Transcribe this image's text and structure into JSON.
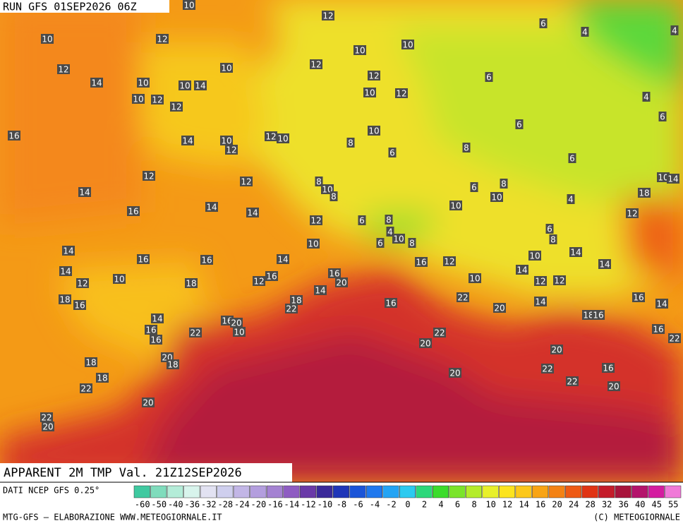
{
  "header": {
    "run": "RUN GFS 01SEP2026 06Z"
  },
  "map": {
    "title": "APPARENT 2M TMP Val. 21Z12SEP2026",
    "labels": [
      10,
      12,
      10,
      12,
      12,
      10,
      12,
      10,
      10,
      14,
      10,
      10,
      14,
      10,
      12,
      12,
      12,
      10,
      12,
      16,
      14,
      10,
      12,
      12,
      10,
      10,
      8,
      6,
      8,
      12,
      12,
      14,
      8,
      10,
      8,
      6,
      8,
      10,
      16,
      14,
      14,
      12,
      6,
      8,
      10,
      4,
      10,
      8,
      6,
      10,
      14,
      16,
      16,
      14,
      14,
      10,
      18,
      12,
      16,
      16,
      20,
      14,
      12,
      18,
      16,
      18,
      22,
      16,
      16,
      12,
      10,
      22,
      20,
      10,
      14,
      14,
      14,
      12,
      12,
      14,
      6,
      8,
      4,
      6,
      18,
      12,
      10,
      14,
      6,
      4,
      4,
      4,
      6,
      6,
      6,
      12,
      14,
      16,
      22,
      16,
      16,
      20,
      10,
      18,
      16,
      16,
      14,
      16,
      22,
      22,
      20,
      20,
      16,
      22,
      22,
      20,
      20,
      18,
      20,
      18,
      18,
      22,
      20,
      22,
      20
    ]
  },
  "footer": {
    "source": "DATI NCEP GFS 0.25°",
    "credit": "MTG-GFS — ELABORAZIONE WWW.METEOGIORNALE.IT",
    "copyright": "(C) METEOGIORNALE"
  },
  "colorbar": {
    "ticks": [
      -60,
      -50,
      -40,
      -36,
      -32,
      -28,
      -24,
      -20,
      -16,
      -14,
      -12,
      -10,
      -8,
      -6,
      -4,
      -2,
      0,
      2,
      4,
      6,
      8,
      10,
      12,
      14,
      16,
      20,
      24,
      28,
      32,
      36,
      40,
      45,
      55
    ],
    "colors": [
      "#3fc9a0",
      "#7fdcbc",
      "#b4ecd8",
      "#d8f4ec",
      "#e2e2f2",
      "#cfcfee",
      "#c2b6e6",
      "#b39ede",
      "#a482d2",
      "#8e5cc2",
      "#6a3aa8",
      "#3a2a9a",
      "#1f36b8",
      "#1a54d8",
      "#1f78ee",
      "#24a4f4",
      "#2ccaf0",
      "#2cd87a",
      "#3cdc2c",
      "#7ae42a",
      "#b4ec2a",
      "#e8f02a",
      "#fce41e",
      "#fcc81a",
      "#f8a414",
      "#f48214",
      "#ee5a14",
      "#e03414",
      "#c41c2a",
      "#a8143c",
      "#b4146c",
      "#d41ca0",
      "#f07ad8"
    ]
  }
}
